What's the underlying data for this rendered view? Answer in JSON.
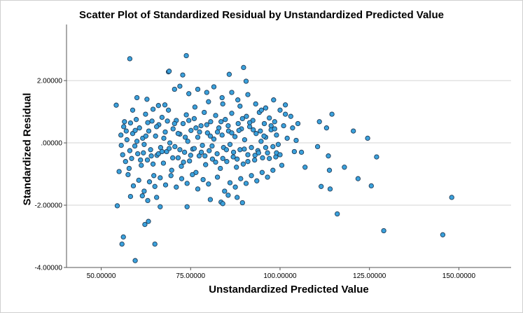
{
  "chart_data": {
    "type": "scatter",
    "title": "Scatter Plot of Standardized Residual by Unstandardized Predicted Value",
    "xlabel": "Unstandardized Predicted Value",
    "ylabel": "Standardized Residual",
    "xlim": [
      40.3,
      164.6
    ],
    "ylim": [
      -4.0,
      3.8
    ],
    "x_ticks": [
      50,
      75,
      100,
      125,
      150
    ],
    "x_tick_labels": [
      "50.00000",
      "75.00000",
      "100.00000",
      "125.00000",
      "150.00000"
    ],
    "y_ticks": [
      -4,
      -2,
      0,
      2
    ],
    "y_tick_labels": [
      "-4.00000",
      "-2.00000",
      ".00000",
      "2.00000"
    ],
    "grid": "horizontal",
    "marker_color": "#3aa1dc",
    "marker_edge_color": "#1f3b57",
    "points": [
      [
        54.2,
        1.21
      ],
      [
        55.0,
        -0.92
      ],
      [
        55.5,
        0.25
      ],
      [
        56.0,
        -0.38
      ],
      [
        56.3,
        0.52
      ],
      [
        56.8,
        -0.6
      ],
      [
        57.2,
        0.1
      ],
      [
        57.8,
        -0.82
      ],
      [
        58.2,
        0.64
      ],
      [
        58.8,
        0.3
      ],
      [
        59.4,
        -0.1
      ],
      [
        59.8,
        0.75
      ],
      [
        60.2,
        -0.35
      ],
      [
        60.7,
        0.48
      ],
      [
        61.2,
        -0.72
      ],
      [
        61.6,
        0.15
      ],
      [
        62.0,
        -0.05
      ],
      [
        62.4,
        0.92
      ],
      [
        62.9,
        -0.55
      ],
      [
        63.3,
        0.38
      ],
      [
        63.8,
        -0.22
      ],
      [
        64.2,
        0.7
      ],
      [
        64.7,
        -1.05
      ],
      [
        65.2,
        0.22
      ],
      [
        65.6,
        -0.4
      ],
      [
        66.1,
        0.58
      ],
      [
        66.6,
        -0.15
      ],
      [
        67.0,
        0.82
      ],
      [
        67.4,
        -0.65
      ],
      [
        67.9,
        0.35
      ],
      [
        68.3,
        -0.28
      ],
      [
        68.8,
        1.05
      ],
      [
        69.2,
        0.0
      ],
      [
        69.7,
        -0.88
      ],
      [
        70.1,
        0.45
      ],
      [
        70.6,
        -0.12
      ],
      [
        71.0,
        0.72
      ],
      [
        71.5,
        -0.48
      ],
      [
        72.0,
        0.28
      ],
      [
        72.4,
        -0.75
      ],
      [
        72.9,
        0.62
      ],
      [
        73.3,
        -0.3
      ],
      [
        73.8,
        0.9
      ],
      [
        74.2,
        0.05
      ],
      [
        74.7,
        -0.58
      ],
      [
        75.1,
        0.4
      ],
      [
        75.6,
        -0.2
      ],
      [
        76.0,
        0.78
      ],
      [
        76.5,
        -0.95
      ],
      [
        77.0,
        0.18
      ],
      [
        77.4,
        -0.42
      ],
      [
        77.9,
        0.55
      ],
      [
        78.3,
        -0.08
      ],
      [
        78.8,
        0.98
      ],
      [
        79.2,
        -0.7
      ],
      [
        79.7,
        0.32
      ],
      [
        80.2,
        -0.25
      ],
      [
        80.6,
        0.68
      ],
      [
        81.1,
        -0.52
      ],
      [
        81.5,
        0.12
      ],
      [
        82.0,
        0.88
      ],
      [
        82.4,
        -0.35
      ],
      [
        82.9,
        0.48
      ],
      [
        83.3,
        -0.82
      ],
      [
        83.8,
        0.25
      ],
      [
        84.2,
        -0.15
      ],
      [
        84.7,
        0.75
      ],
      [
        85.1,
        -0.6
      ],
      [
        85.6,
        0.38
      ],
      [
        86.0,
        -0.05
      ],
      [
        86.5,
        0.95
      ],
      [
        86.9,
        -0.45
      ],
      [
        87.4,
        0.2
      ],
      [
        87.8,
        -0.78
      ],
      [
        88.3,
        0.62
      ],
      [
        88.8,
        -0.22
      ],
      [
        89.2,
        0.45
      ],
      [
        89.7,
        -0.68
      ],
      [
        90.1,
        0.1
      ],
      [
        90.6,
        0.85
      ],
      [
        91.0,
        -0.38
      ],
      [
        91.5,
        0.52
      ],
      [
        92.0,
        -0.15
      ],
      [
        92.4,
        0.72
      ],
      [
        92.9,
        -0.55
      ],
      [
        93.3,
        0.3
      ],
      [
        93.8,
        -0.25
      ],
      [
        94.2,
        0.98
      ],
      [
        94.7,
        0.05
      ],
      [
        95.1,
        -0.48
      ],
      [
        95.6,
        0.62
      ],
      [
        96.0,
        0.18
      ],
      [
        96.5,
        -0.32
      ],
      [
        97.0,
        0.8
      ],
      [
        97.5,
        0.42
      ],
      [
        98.0,
        -0.12
      ],
      [
        98.5,
        0.68
      ],
      [
        99.0,
        0.25
      ],
      [
        100.0,
        1.05
      ],
      [
        101.0,
        0.55
      ],
      [
        102.0,
        0.15
      ],
      [
        103.0,
        0.85
      ],
      [
        104.0,
        -0.28
      ],
      [
        105.0,
        0.62
      ],
      [
        104.5,
        0.08
      ],
      [
        103.5,
        0.48
      ],
      [
        99.5,
        -0.05
      ],
      [
        101.5,
        0.92
      ],
      [
        100.5,
        -0.72
      ],
      [
        98.8,
        -0.45
      ],
      [
        55.6,
        -0.08
      ],
      [
        57.0,
        0.38
      ],
      [
        58.5,
        -0.5
      ],
      [
        60.0,
        0.05
      ],
      [
        61.8,
        -0.32
      ],
      [
        63.0,
        0.65
      ],
      [
        64.5,
        -0.68
      ],
      [
        66.0,
        -0.35
      ],
      [
        67.5,
        0.15
      ],
      [
        69.0,
        -0.18
      ],
      [
        70.5,
        0.62
      ],
      [
        72.0,
        -0.22
      ],
      [
        73.5,
        0.18
      ],
      [
        75.0,
        -0.4
      ],
      [
        76.5,
        0.48
      ],
      [
        78.0,
        -0.3
      ],
      [
        79.5,
        0.58
      ],
      [
        81.0,
        -0.1
      ],
      [
        82.5,
        0.35
      ],
      [
        84.0,
        -0.5
      ],
      [
        85.5,
        0.55
      ],
      [
        87.0,
        -0.3
      ],
      [
        88.5,
        0.4
      ],
      [
        90.0,
        -0.2
      ],
      [
        91.5,
        0.65
      ],
      [
        93.0,
        -0.4
      ],
      [
        94.5,
        0.38
      ],
      [
        96.0,
        -0.15
      ],
      [
        97.5,
        0.55
      ],
      [
        99.0,
        -0.32
      ],
      [
        56.5,
        0.68
      ],
      [
        58.0,
        -0.25
      ],
      [
        59.5,
        0.4
      ],
      [
        61.0,
        -0.55
      ],
      [
        62.5,
        0.22
      ],
      [
        64.0,
        -0.42
      ],
      [
        65.5,
        0.52
      ],
      [
        67.0,
        -0.28
      ],
      [
        68.5,
        0.7
      ],
      [
        70.0,
        -0.48
      ],
      [
        71.5,
        0.3
      ],
      [
        73.0,
        -0.62
      ],
      [
        74.5,
        0.72
      ],
      [
        76.0,
        -0.18
      ],
      [
        77.5,
        0.35
      ],
      [
        79.0,
        -0.42
      ],
      [
        80.5,
        0.22
      ],
      [
        82.0,
        -0.62
      ],
      [
        83.5,
        0.68
      ],
      [
        85.0,
        -0.22
      ],
      [
        86.5,
        0.32
      ],
      [
        88.0,
        -0.52
      ],
      [
        89.5,
        0.78
      ],
      [
        91.0,
        -0.6
      ],
      [
        92.5,
        0.42
      ],
      [
        94.0,
        -0.32
      ],
      [
        95.5,
        0.22
      ],
      [
        97.0,
        -0.5
      ],
      [
        98.5,
        0.45
      ],
      [
        100.0,
        -0.38
      ],
      [
        57.5,
        -1.02
      ],
      [
        59.0,
        -1.38
      ],
      [
        60.5,
        -1.2
      ],
      [
        62.0,
        -1.55
      ],
      [
        63.5,
        -1.25
      ],
      [
        65.0,
        -1.4
      ],
      [
        66.5,
        -1.12
      ],
      [
        68.0,
        -1.35
      ],
      [
        69.5,
        -1.05
      ],
      [
        71.0,
        -1.42
      ],
      [
        72.5,
        -1.15
      ],
      [
        74.0,
        -1.3
      ],
      [
        75.5,
        -1.02
      ],
      [
        77.0,
        -1.48
      ],
      [
        78.5,
        -1.18
      ],
      [
        80.0,
        -1.32
      ],
      [
        82.5,
        -1.1
      ],
      [
        84.5,
        -1.55
      ],
      [
        86.0,
        -1.28
      ],
      [
        87.5,
        -1.42
      ],
      [
        89.0,
        -1.15
      ],
      [
        90.5,
        -1.3
      ],
      [
        92.0,
        -1.05
      ],
      [
        93.5,
        -1.22
      ],
      [
        95.0,
        -0.95
      ],
      [
        96.5,
        -1.1
      ],
      [
        98.0,
        -0.88
      ],
      [
        61.5,
        -1.7
      ],
      [
        63.0,
        -1.85
      ],
      [
        65.5,
        -1.75
      ],
      [
        80.5,
        -1.82
      ],
      [
        83.5,
        -1.9
      ],
      [
        85.5,
        -1.68
      ],
      [
        88.0,
        -1.75
      ],
      [
        66.5,
        -2.05
      ],
      [
        74.0,
        -2.05
      ],
      [
        84.0,
        -1.95
      ],
      [
        89.5,
        -1.92
      ],
      [
        54.5,
        -2.02
      ],
      [
        55.8,
        -3.25
      ],
      [
        56.2,
        -3.02
      ],
      [
        59.5,
        -3.78
      ],
      [
        62.2,
        -2.62
      ],
      [
        63.2,
        -2.52
      ],
      [
        65.0,
        -3.25
      ],
      [
        58.2,
        -1.72
      ],
      [
        58.0,
        2.7
      ],
      [
        68.8,
        2.28
      ],
      [
        69.0,
        2.3
      ],
      [
        72.8,
        2.18
      ],
      [
        73.8,
        2.8
      ],
      [
        85.8,
        2.2
      ],
      [
        89.8,
        2.42
      ],
      [
        90.5,
        1.98
      ],
      [
        60.0,
        1.45
      ],
      [
        62.8,
        1.4
      ],
      [
        66.0,
        1.2
      ],
      [
        70.5,
        1.72
      ],
      [
        72.0,
        1.82
      ],
      [
        74.5,
        1.58
      ],
      [
        77.0,
        1.72
      ],
      [
        79.5,
        1.62
      ],
      [
        81.5,
        1.8
      ],
      [
        83.8,
        1.45
      ],
      [
        86.5,
        1.62
      ],
      [
        88.2,
        1.38
      ],
      [
        91.0,
        1.55
      ],
      [
        93.2,
        1.25
      ],
      [
        96.0,
        1.12
      ],
      [
        98.2,
        1.38
      ],
      [
        58.8,
        1.05
      ],
      [
        64.5,
        1.08
      ],
      [
        67.8,
        1.22
      ],
      [
        76.2,
        1.15
      ],
      [
        80.0,
        1.32
      ],
      [
        84.0,
        1.25
      ],
      [
        88.8,
        1.18
      ],
      [
        94.8,
        1.05
      ],
      [
        101.5,
        1.22
      ],
      [
        106.0,
        -0.3
      ],
      [
        107.0,
        -0.78
      ],
      [
        110.5,
        -0.12
      ],
      [
        111.0,
        0.68
      ],
      [
        111.5,
        -1.4
      ],
      [
        113.0,
        0.48
      ],
      [
        113.5,
        -0.42
      ],
      [
        113.8,
        -0.88
      ],
      [
        114.0,
        -1.48
      ],
      [
        114.5,
        0.92
      ],
      [
        116.0,
        -2.28
      ],
      [
        118.0,
        -0.78
      ],
      [
        120.5,
        0.38
      ],
      [
        121.8,
        -1.15
      ],
      [
        124.5,
        0.15
      ],
      [
        125.5,
        -1.38
      ],
      [
        127.0,
        -0.45
      ],
      [
        129.0,
        -2.82
      ],
      [
        145.5,
        -2.95
      ],
      [
        148.0,
        -1.75
      ]
    ]
  }
}
